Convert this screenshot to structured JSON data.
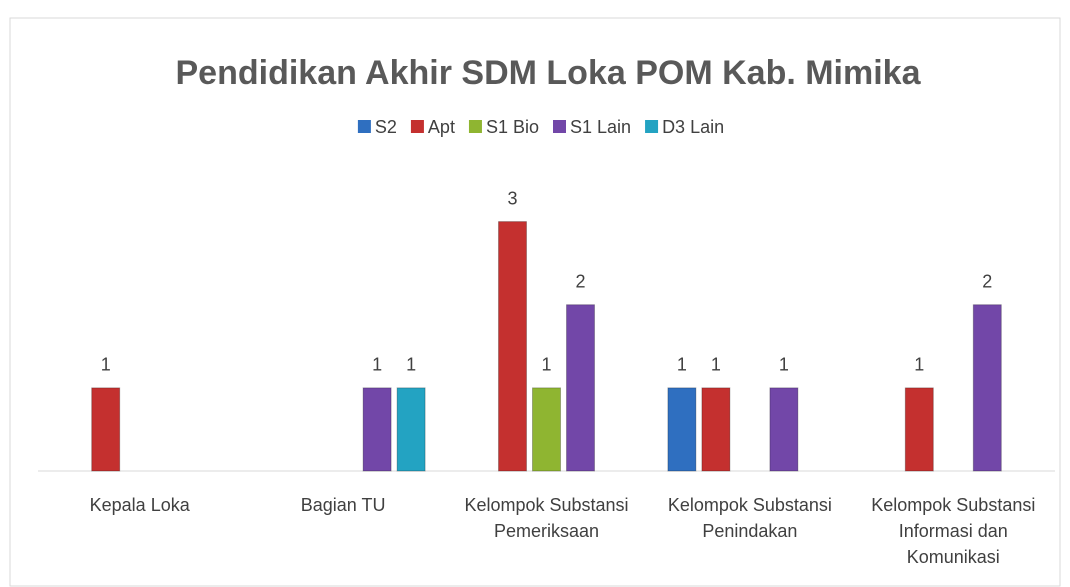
{
  "chart_data": {
    "type": "bar",
    "title": "Pendidikan Akhir SDM  Loka POM Kab. Mimika",
    "categories": [
      "Kepala Loka",
      "Bagian TU",
      "Kelompok Substansi Pemeriksaan",
      "Kelompok Substansi Penindakan",
      "Kelompok Substansi Informasi dan Komunikasi"
    ],
    "series": [
      {
        "name": "S2",
        "color": "#2f6fc0",
        "values": [
          null,
          null,
          null,
          1,
          null
        ]
      },
      {
        "name": "Apt",
        "color": "#c4302f",
        "values": [
          1,
          null,
          3,
          1,
          1
        ]
      },
      {
        "name": "S1 Bio",
        "color": "#8fb531",
        "values": [
          null,
          null,
          1,
          null,
          null
        ]
      },
      {
        "name": "S1 Lain",
        "color": "#7247a8",
        "values": [
          null,
          1,
          2,
          1,
          2
        ]
      },
      {
        "name": "D3 Lain",
        "color": "#23a3c2",
        "values": [
          null,
          1,
          null,
          null,
          null
        ]
      }
    ],
    "ylim": [
      0,
      3.5
    ],
    "legend": "top",
    "data_labels": true
  }
}
